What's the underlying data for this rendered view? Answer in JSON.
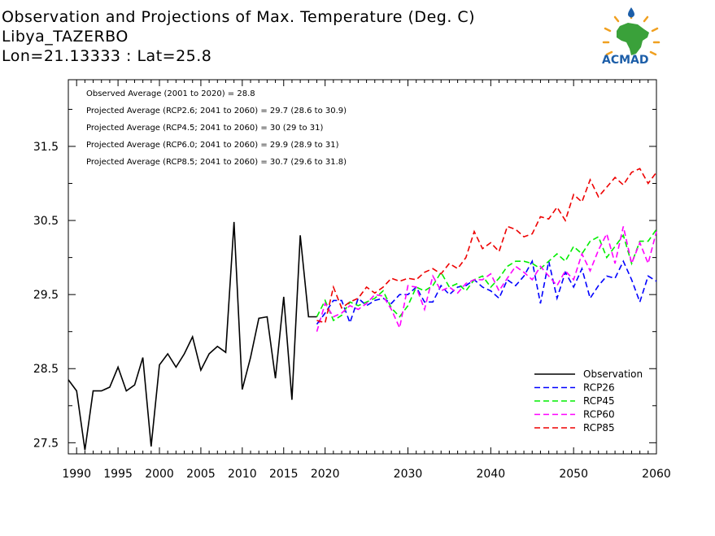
{
  "header": {
    "title": "Observation and Projections of Max. Temperature (Deg. C)",
    "location": "Libya_TAZERBO",
    "coords": "Lon=21.13333 : Lat=25.8"
  },
  "logo": {
    "text": "ACMAD"
  },
  "notes": [
    "Observed Average (2001 to 2020) = 28.8",
    "Projected Average (RCP2.6; 2041 to 2060) = 29.7 (28.6 to 30.9)",
    "Projected Average (RCP4.5; 2041 to 2060) = 30 (29 to 31)",
    "Projected Average (RCP6.0; 2041 to 2060) = 29.9 (28.9 to 31)",
    "Projected Average (RCP8.5; 2041 to 2060) = 30.7 (29.6 to 31.8)"
  ],
  "chart_data": {
    "type": "line",
    "xlim": [
      1989,
      2060
    ],
    "ylim": [
      27.35,
      32.4
    ],
    "x_ticks": [
      1990,
      1995,
      2000,
      2005,
      2010,
      2015,
      2020,
      2030,
      2040,
      2050,
      2060
    ],
    "x_tick_labels": [
      "1990",
      "1995",
      "2000",
      "2005",
      "2010",
      "2015",
      "2020",
      "2030",
      "2040",
      "2050",
      "2060"
    ],
    "y_ticks": [
      27.5,
      28.5,
      29.5,
      30.5,
      31.5
    ],
    "y_tick_labels": [
      "27.5",
      "28.5",
      "29.5",
      "30.5",
      "31.5"
    ],
    "series": [
      {
        "name": "Observation",
        "color": "#000000",
        "dashed": false,
        "x": [
          1989,
          1990,
          1991,
          1992,
          1993,
          1994,
          1995,
          1996,
          1997,
          1998,
          1999,
          2000,
          2001,
          2002,
          2003,
          2004,
          2005,
          2006,
          2007,
          2008,
          2009,
          2010,
          2011,
          2012,
          2013,
          2014,
          2015,
          2016,
          2017,
          2018,
          2019
        ],
        "y": [
          28.35,
          28.2,
          27.4,
          28.2,
          28.2,
          28.25,
          28.52,
          28.2,
          28.28,
          28.65,
          27.45,
          28.55,
          28.7,
          28.52,
          28.7,
          28.93,
          28.48,
          28.7,
          28.8,
          28.72,
          30.48,
          28.22,
          28.65,
          29.18,
          29.2,
          28.37,
          29.47,
          28.08,
          30.3,
          29.2,
          29.2
        ]
      },
      {
        "name": "RCP26",
        "color": "#0000ff",
        "dashed": true,
        "x": [
          2019,
          2020,
          2021,
          2022,
          2023,
          2024,
          2025,
          2026,
          2027,
          2028,
          2029,
          2030,
          2031,
          2032,
          2033,
          2034,
          2035,
          2036,
          2037,
          2038,
          2039,
          2040,
          2041,
          2042,
          2043,
          2044,
          2045,
          2046,
          2047,
          2048,
          2049,
          2050,
          2051,
          2052,
          2053,
          2054,
          2055,
          2056,
          2057,
          2058,
          2059,
          2060
        ],
        "y": [
          29.1,
          29.25,
          29.42,
          29.42,
          29.12,
          29.45,
          29.35,
          29.42,
          29.45,
          29.38,
          29.5,
          29.5,
          29.6,
          29.4,
          29.4,
          29.62,
          29.5,
          29.6,
          29.62,
          29.7,
          29.6,
          29.55,
          29.45,
          29.7,
          29.62,
          29.75,
          29.95,
          29.38,
          29.95,
          29.45,
          29.8,
          29.6,
          29.85,
          29.45,
          29.62,
          29.75,
          29.72,
          29.95,
          29.7,
          29.4,
          29.75,
          29.68
        ]
      },
      {
        "name": "RCP45",
        "color": "#00ee00",
        "dashed": true,
        "x": [
          2019,
          2020,
          2021,
          2022,
          2023,
          2024,
          2025,
          2026,
          2027,
          2028,
          2029,
          2030,
          2031,
          2032,
          2033,
          2034,
          2035,
          2036,
          2037,
          2038,
          2039,
          2040,
          2041,
          2042,
          2043,
          2044,
          2045,
          2046,
          2047,
          2048,
          2049,
          2050,
          2051,
          2052,
          2053,
          2054,
          2055,
          2056,
          2057,
          2058,
          2059,
          2060
        ],
        "y": [
          29.2,
          29.42,
          29.15,
          29.22,
          29.4,
          29.35,
          29.4,
          29.45,
          29.55,
          29.32,
          29.2,
          29.35,
          29.6,
          29.55,
          29.62,
          29.8,
          29.6,
          29.65,
          29.55,
          29.7,
          29.75,
          29.6,
          29.72,
          29.88,
          29.95,
          29.95,
          29.92,
          29.85,
          29.95,
          30.05,
          29.95,
          30.15,
          30.05,
          30.22,
          30.28,
          30.0,
          30.15,
          30.3,
          29.92,
          30.22,
          30.22,
          30.38
        ]
      },
      {
        "name": "RCP60",
        "color": "#ff00ff",
        "dashed": true,
        "x": [
          2019,
          2020,
          2021,
          2022,
          2023,
          2024,
          2025,
          2026,
          2027,
          2028,
          2029,
          2030,
          2031,
          2032,
          2033,
          2034,
          2035,
          2036,
          2037,
          2038,
          2039,
          2040,
          2041,
          2042,
          2043,
          2044,
          2045,
          2046,
          2047,
          2048,
          2049,
          2050,
          2051,
          2052,
          2053,
          2054,
          2055,
          2056,
          2057,
          2058,
          2059,
          2060
        ],
        "y": [
          29.0,
          29.38,
          29.2,
          29.25,
          29.35,
          29.3,
          29.38,
          29.5,
          29.48,
          29.3,
          29.05,
          29.62,
          29.6,
          29.3,
          29.75,
          29.55,
          29.6,
          29.52,
          29.65,
          29.7,
          29.7,
          29.78,
          29.55,
          29.72,
          29.88,
          29.8,
          29.7,
          29.88,
          29.75,
          29.62,
          29.82,
          29.7,
          30.05,
          29.82,
          30.1,
          30.32,
          29.92,
          30.42,
          29.92,
          30.2,
          29.92,
          30.35
        ]
      },
      {
        "name": "RCP85",
        "color": "#ee0000",
        "dashed": true,
        "x": [
          2019,
          2020,
          2021,
          2022,
          2023,
          2024,
          2025,
          2026,
          2027,
          2028,
          2029,
          2030,
          2031,
          2032,
          2033,
          2034,
          2035,
          2036,
          2037,
          2038,
          2039,
          2040,
          2041,
          2042,
          2043,
          2044,
          2045,
          2046,
          2047,
          2048,
          2049,
          2050,
          2051,
          2052,
          2053,
          2054,
          2055,
          2056,
          2057,
          2058,
          2059,
          2060
        ],
        "y": [
          29.15,
          29.12,
          29.6,
          29.32,
          29.4,
          29.45,
          29.6,
          29.52,
          29.6,
          29.72,
          29.68,
          29.72,
          29.7,
          29.8,
          29.85,
          29.78,
          29.92,
          29.85,
          30.0,
          30.35,
          30.12,
          30.2,
          30.08,
          30.42,
          30.38,
          30.28,
          30.32,
          30.55,
          30.52,
          30.68,
          30.5,
          30.85,
          30.75,
          31.05,
          30.82,
          30.95,
          31.08,
          30.98,
          31.15,
          31.2,
          31.0,
          31.15
        ]
      }
    ]
  }
}
